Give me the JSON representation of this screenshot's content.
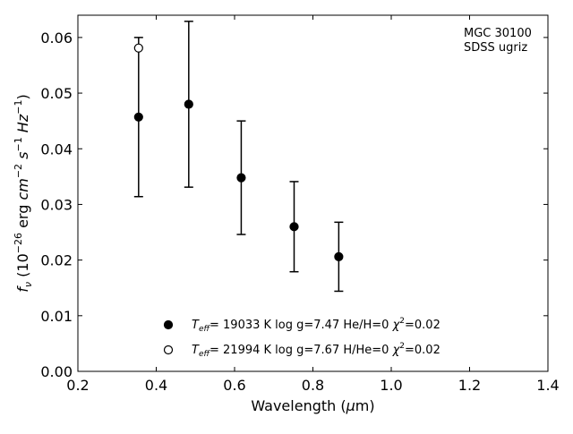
{
  "chart_data": {
    "type": "scatter",
    "xlabel": "Wavelength (μm)",
    "ylabel": "f_ν (10^-26 erg cm^-2 s^-1 Hz^-1)",
    "xlim": [
      0.2,
      1.4
    ],
    "ylim": [
      0.0,
      0.064
    ],
    "xticks": [
      "0.2",
      "0.4",
      "0.6",
      "0.8",
      "1.0",
      "1.2",
      "1.4"
    ],
    "yticks": [
      "0.00",
      "0.01",
      "0.02",
      "0.03",
      "0.04",
      "0.05",
      "0.06"
    ],
    "grid": false,
    "annotation": [
      "MGC 30100",
      "SDSS ugriz"
    ],
    "series": [
      {
        "name": "Teff= 19033 K  log g=7.47  He/H=0  χ²=0.02",
        "marker": "filled-circle",
        "color": "#000000",
        "x": [
          0.355,
          0.483,
          0.617,
          0.752,
          0.866
        ],
        "y": [
          0.0457,
          0.048,
          0.0348,
          0.026,
          0.0206
        ],
        "yerr": [
          0.0143,
          0.0149,
          0.0102,
          0.0081,
          0.0062
        ]
      },
      {
        "name": "Teff= 21994 K  log g=7.67  H/He=0  χ²=0.02",
        "marker": "open-circle",
        "color": "#000000",
        "x": [
          0.355
        ],
        "y": [
          0.0581
        ]
      }
    ],
    "legend": {
      "placement": "lower-center",
      "entries": [
        {
          "teff_label": "T",
          "teff_sub": "eff",
          "text": "= 19033 K  log g=7.47  He/H=0  ",
          "chi": "χ",
          "chi_sup": "2",
          "chi_val": "=0.02"
        },
        {
          "teff_label": "T",
          "teff_sub": "eff",
          "text": "= 21994 K  log g=7.67  H/He=0  ",
          "chi": "χ",
          "chi_sup": "2",
          "chi_val": "=0.02"
        }
      ]
    }
  }
}
